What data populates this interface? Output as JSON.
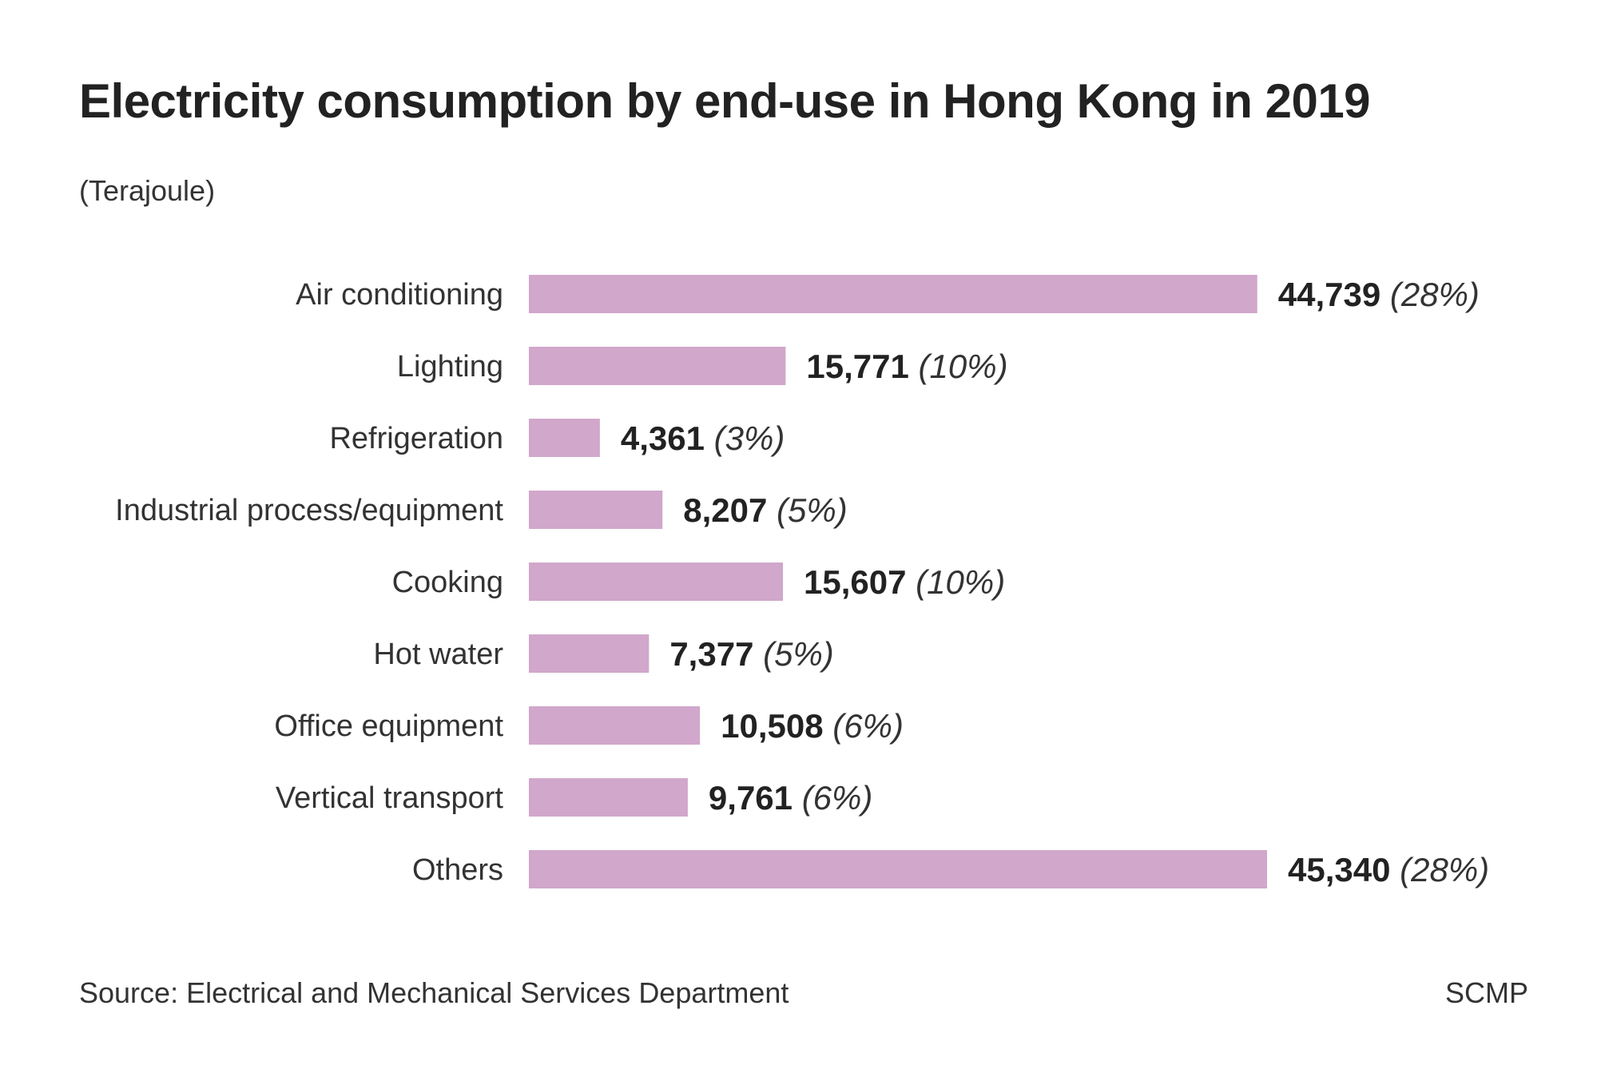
{
  "chart_data": {
    "type": "bar",
    "orientation": "horizontal",
    "title": "Electricity consumption by end-use in Hong Kong in 2019",
    "unit_label": "(Terajoule)",
    "categories": [
      "Air conditioning",
      "Lighting",
      "Refrigeration",
      "Industrial process/equipment",
      "Cooking",
      "Hot water",
      "Office equipment",
      "Vertical transport",
      "Others"
    ],
    "values": [
      44739,
      15771,
      4361,
      8207,
      15607,
      7377,
      10508,
      9761,
      45340
    ],
    "value_labels": [
      "44,739",
      "15,771",
      "4,361",
      "8,207",
      "15,607",
      "7,377",
      "10,508",
      "9,761",
      "45,340"
    ],
    "percent_labels": [
      "(28%)",
      "(10%)",
      "(3%)",
      "(5%)",
      "(10%)",
      "(5%)",
      "(6%)",
      "(6%)",
      "(28%)"
    ],
    "xlim": [
      0,
      45340
    ],
    "grid": false,
    "legend": "none",
    "bar_color": "#d1a7cb",
    "source": "Source: Electrical and Mechanical Services Department",
    "brand": "SCMP"
  }
}
